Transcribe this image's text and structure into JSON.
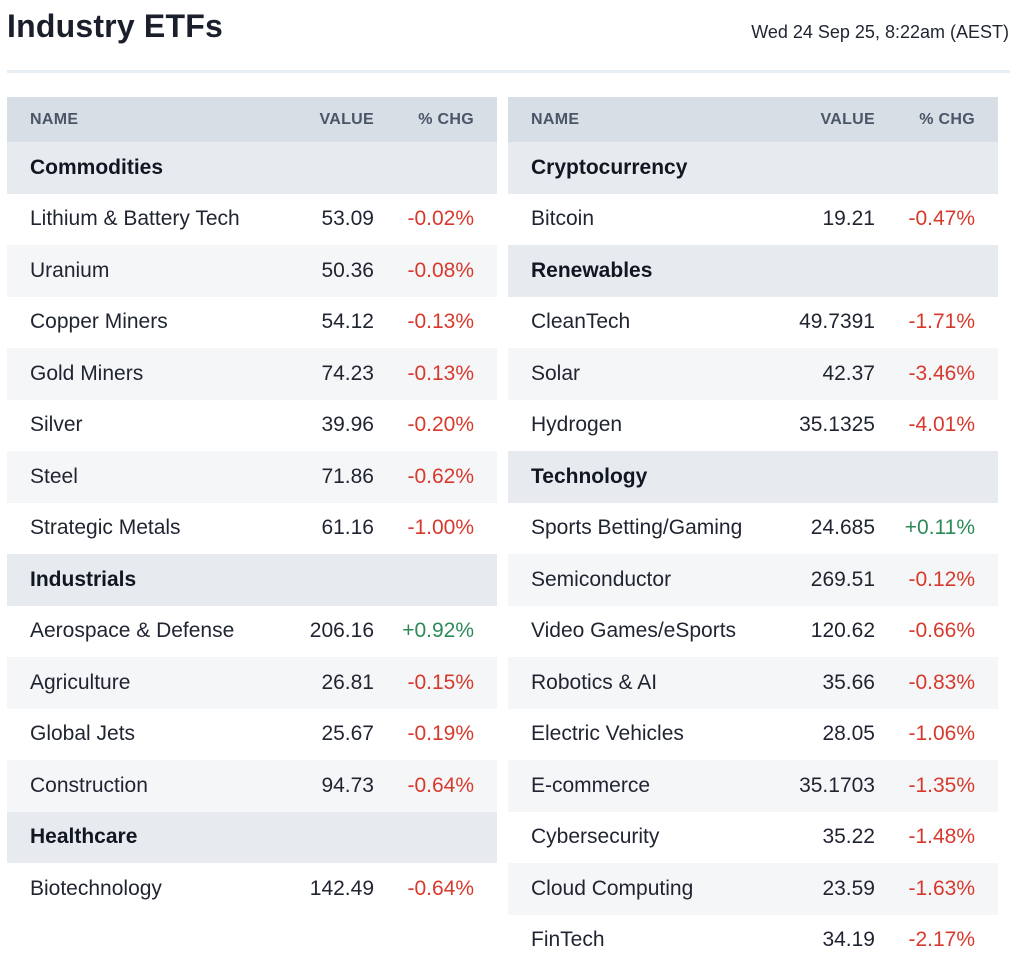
{
  "page": {
    "title": "Industry ETFs",
    "timestamp": "Wed 24 Sep 25, 8:22am (AEST)"
  },
  "columns": {
    "name": "NAME",
    "value": "VALUE",
    "chg": "% CHG"
  },
  "colors": {
    "negative": "#d73a2c",
    "positive": "#2d8a58",
    "header_bg": "#d8dee5",
    "group_bg": "#e7ebef"
  },
  "left_table": [
    {
      "type": "group",
      "name": "Commodities"
    },
    {
      "type": "item",
      "name": "Lithium & Battery Tech",
      "value": "53.09",
      "chg": "-0.02%"
    },
    {
      "type": "item",
      "name": "Uranium",
      "value": "50.36",
      "chg": "-0.08%"
    },
    {
      "type": "item",
      "name": "Copper Miners",
      "value": "54.12",
      "chg": "-0.13%"
    },
    {
      "type": "item",
      "name": "Gold Miners",
      "value": "74.23",
      "chg": "-0.13%"
    },
    {
      "type": "item",
      "name": "Silver",
      "value": "39.96",
      "chg": "-0.20%"
    },
    {
      "type": "item",
      "name": "Steel",
      "value": "71.86",
      "chg": "-0.62%"
    },
    {
      "type": "item",
      "name": "Strategic Metals",
      "value": "61.16",
      "chg": "-1.00%"
    },
    {
      "type": "group",
      "name": "Industrials"
    },
    {
      "type": "item",
      "name": "Aerospace & Defense",
      "value": "206.16",
      "chg": "+0.92%"
    },
    {
      "type": "item",
      "name": "Agriculture",
      "value": "26.81",
      "chg": "-0.15%"
    },
    {
      "type": "item",
      "name": "Global Jets",
      "value": "25.67",
      "chg": "-0.19%"
    },
    {
      "type": "item",
      "name": "Construction",
      "value": "94.73",
      "chg": "-0.64%"
    },
    {
      "type": "group",
      "name": "Healthcare"
    },
    {
      "type": "item",
      "name": "Biotechnology",
      "value": "142.49",
      "chg": "-0.64%"
    }
  ],
  "right_table": [
    {
      "type": "group",
      "name": "Cryptocurrency"
    },
    {
      "type": "item",
      "name": "Bitcoin",
      "value": "19.21",
      "chg": "-0.47%"
    },
    {
      "type": "group",
      "name": "Renewables"
    },
    {
      "type": "item",
      "name": "CleanTech",
      "value": "49.7391",
      "chg": "-1.71%"
    },
    {
      "type": "item",
      "name": "Solar",
      "value": "42.37",
      "chg": "-3.46%"
    },
    {
      "type": "item",
      "name": "Hydrogen",
      "value": "35.1325",
      "chg": "-4.01%"
    },
    {
      "type": "group",
      "name": "Technology"
    },
    {
      "type": "item",
      "name": "Sports Betting/Gaming",
      "value": "24.685",
      "chg": "+0.11%"
    },
    {
      "type": "item",
      "name": "Semiconductor",
      "value": "269.51",
      "chg": "-0.12%"
    },
    {
      "type": "item",
      "name": "Video Games/eSports",
      "value": "120.62",
      "chg": "-0.66%"
    },
    {
      "type": "item",
      "name": "Robotics & AI",
      "value": "35.66",
      "chg": "-0.83%"
    },
    {
      "type": "item",
      "name": "Electric Vehicles",
      "value": "28.05",
      "chg": "-1.06%"
    },
    {
      "type": "item",
      "name": "E-commerce",
      "value": "35.1703",
      "chg": "-1.35%"
    },
    {
      "type": "item",
      "name": "Cybersecurity",
      "value": "35.22",
      "chg": "-1.48%"
    },
    {
      "type": "item",
      "name": "Cloud Computing",
      "value": "23.59",
      "chg": "-1.63%"
    },
    {
      "type": "item",
      "name": "FinTech",
      "value": "34.19",
      "chg": "-2.17%"
    }
  ]
}
